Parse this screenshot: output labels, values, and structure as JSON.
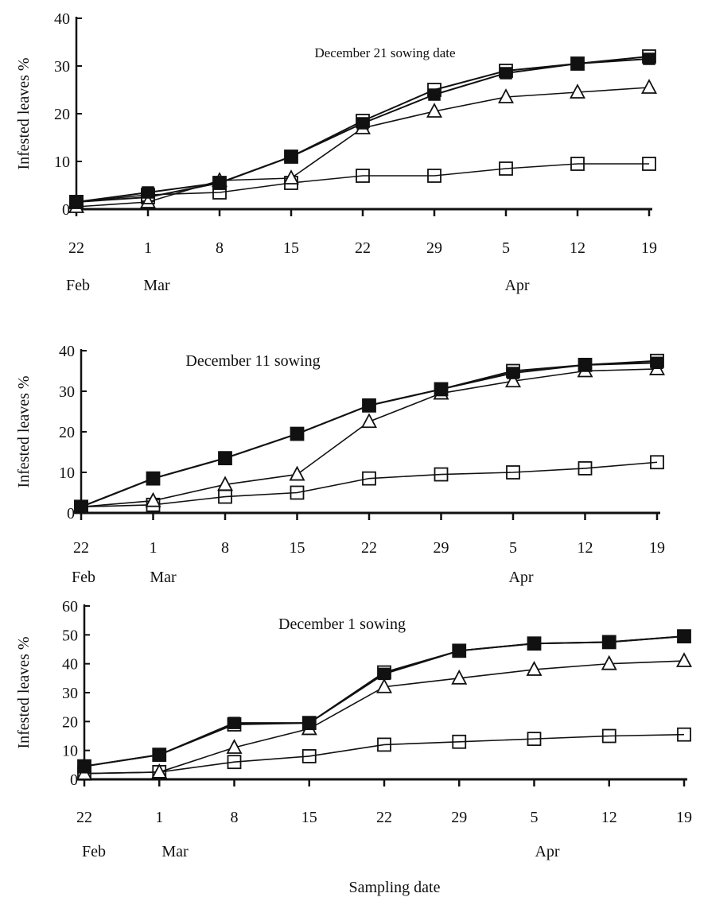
{
  "figure": {
    "x_axis_title": "Sampling date"
  },
  "chart_data": [
    {
      "type": "line",
      "title": "December 21 sowing date",
      "ylabel": "Infested leaves %",
      "xlabel": "",
      "categories": [
        "22",
        "1",
        "8",
        "15",
        "22",
        "29",
        "5",
        "12",
        "19"
      ],
      "month_labels": [
        {
          "label": "Feb",
          "category_index": 0
        },
        {
          "label": "Mar",
          "category_index": 1
        },
        {
          "label": "Apr",
          "category_index": 6
        }
      ],
      "ylim": [
        0,
        40
      ],
      "yticks": [
        0,
        10,
        20,
        30,
        40
      ],
      "grid": false,
      "series": [
        {
          "marker": "filled-square",
          "values": [
            1.5,
            3.5,
            5.5,
            11,
            18,
            24,
            28.5,
            30.5,
            31.5
          ]
        },
        {
          "marker": "open-square",
          "values": [
            1.5,
            3,
            3.5,
            5.5,
            7,
            7,
            8.5,
            9.5,
            9.5
          ]
        },
        {
          "marker": "open-triangle",
          "values": [
            0.5,
            1.5,
            6,
            6.5,
            17,
            20.5,
            23.5,
            24.5,
            25.5
          ]
        },
        {
          "marker": "open-square",
          "values": [
            1.5,
            2.5,
            5.5,
            11,
            18.5,
            25,
            29,
            30.5,
            32
          ]
        }
      ]
    },
    {
      "type": "line",
      "title": "December 11 sowing",
      "ylabel": "Infested leaves %",
      "xlabel": "",
      "categories": [
        "22",
        "1",
        "8",
        "15",
        "22",
        "29",
        "5",
        "12",
        "19"
      ],
      "month_labels": [
        {
          "label": "Feb",
          "category_index": 0
        },
        {
          "label": "Mar",
          "category_index": 1
        },
        {
          "label": "Apr",
          "category_index": 6
        }
      ],
      "ylim": [
        0,
        40
      ],
      "yticks": [
        0,
        10,
        20,
        30,
        40
      ],
      "grid": false,
      "series": [
        {
          "marker": "filled-square",
          "values": [
            1.5,
            8.5,
            13.5,
            19.5,
            26.5,
            30.5,
            34.5,
            36.5,
            37
          ]
        },
        {
          "marker": "open-square",
          "values": [
            1.5,
            2,
            4,
            5,
            8.5,
            9.5,
            10,
            11,
            12.5
          ]
        },
        {
          "marker": "open-triangle",
          "values": [
            1.5,
            3,
            7,
            9.5,
            22.5,
            29.5,
            32.5,
            35,
            35.5
          ]
        },
        {
          "marker": "open-square",
          "values": [
            1.5,
            8.5,
            13.5,
            19.5,
            26.5,
            30.5,
            35,
            36.5,
            37.5
          ]
        }
      ]
    },
    {
      "type": "line",
      "title": "December 1 sowing",
      "ylabel": "Infested leaves %",
      "xlabel": "",
      "categories": [
        "22",
        "1",
        "8",
        "15",
        "22",
        "29",
        "5",
        "12",
        "19"
      ],
      "month_labels": [
        {
          "label": "Feb",
          "category_index": 0
        },
        {
          "label": "Mar",
          "category_index": 1
        },
        {
          "label": "Apr",
          "category_index": 6
        }
      ],
      "ylim": [
        0,
        60
      ],
      "yticks": [
        0,
        10,
        20,
        30,
        40,
        50,
        60
      ],
      "grid": false,
      "series": [
        {
          "marker": "filled-square",
          "values": [
            4.5,
            8.5,
            19.5,
            19.5,
            36.5,
            44.5,
            47,
            47.5,
            49.5
          ]
        },
        {
          "marker": "open-square",
          "values": [
            2,
            2.5,
            6,
            8,
            12,
            13,
            14,
            15,
            15.5
          ]
        },
        {
          "marker": "open-triangle",
          "values": [
            2,
            2.5,
            11,
            17.5,
            32,
            35,
            38,
            40,
            41
          ]
        },
        {
          "marker": "open-square",
          "values": [
            4.5,
            8.5,
            19,
            19.5,
            37,
            44.5,
            47,
            47.5,
            49.5
          ]
        }
      ]
    }
  ]
}
